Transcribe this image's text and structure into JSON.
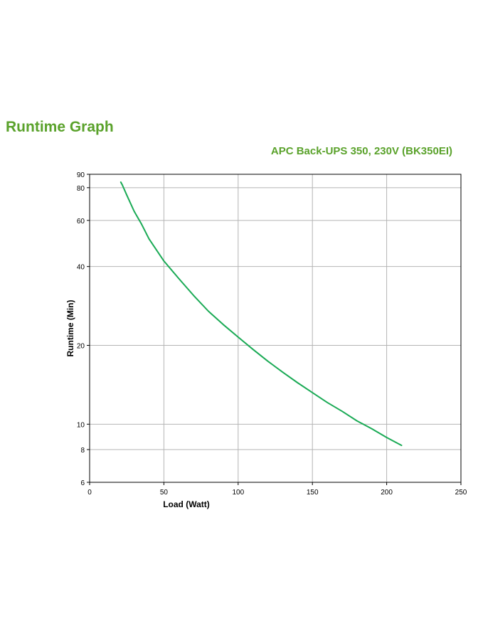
{
  "page": {
    "title": "Runtime Graph"
  },
  "colors": {
    "heading": "#5aa22b",
    "line": "#1aaa55",
    "grid": "#b4b4b4",
    "axis": "#000000"
  },
  "chart_data": {
    "type": "line",
    "title": "APC Back-UPS 350, 230V (BK350EI)",
    "xlabel": "Load (Watt)",
    "ylabel": "Runtime (Min)",
    "xlim": [
      0,
      250
    ],
    "ylim": [
      6,
      90
    ],
    "yscale": "log",
    "grid": true,
    "x_ticks": [
      0,
      50,
      100,
      150,
      200,
      250
    ],
    "y_ticks": [
      6,
      8,
      10,
      20,
      40,
      60,
      80,
      90
    ],
    "series": [
      {
        "x": [
          21,
          22,
          25,
          30,
          35,
          40,
          50,
          60,
          70,
          80,
          90,
          100,
          110,
          120,
          130,
          140,
          150,
          160,
          170,
          180,
          190,
          200,
          210
        ],
        "y": [
          84,
          82,
          75,
          65,
          58,
          51,
          42,
          36,
          31,
          27,
          24,
          21.5,
          19.3,
          17.4,
          15.8,
          14.4,
          13.2,
          12.1,
          11.2,
          10.3,
          9.6,
          8.9,
          8.3
        ]
      }
    ]
  }
}
